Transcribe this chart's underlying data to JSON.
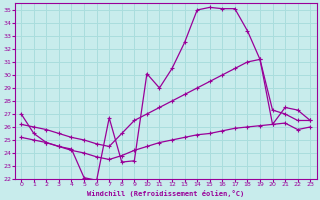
{
  "title": "",
  "xlabel": "Windchill (Refroidissement éolien,°C)",
  "ylabel": "",
  "background_color": "#c8ecec",
  "line_color": "#990099",
  "grid_color": "#aadddd",
  "xlim": [
    -0.5,
    23.5
  ],
  "ylim": [
    22,
    35.5
  ],
  "xticks": [
    0,
    1,
    2,
    3,
    4,
    5,
    6,
    7,
    8,
    9,
    10,
    11,
    12,
    13,
    14,
    15,
    16,
    17,
    18,
    19,
    20,
    21,
    22,
    23
  ],
  "yticks": [
    22,
    23,
    24,
    25,
    26,
    27,
    28,
    29,
    30,
    31,
    32,
    33,
    34,
    35
  ],
  "line1_x": [
    0,
    1,
    2,
    3,
    4,
    5,
    6,
    7,
    8,
    9,
    10,
    11,
    12,
    13,
    14,
    15,
    16,
    17,
    18,
    19,
    20,
    21,
    22,
    23
  ],
  "line1_y": [
    27.0,
    25.5,
    24.8,
    24.5,
    24.3,
    22.1,
    21.9,
    26.7,
    23.3,
    23.4,
    30.1,
    29.0,
    30.5,
    32.5,
    35.0,
    35.2,
    35.1,
    35.1,
    33.4,
    31.2,
    27.3,
    27.0,
    26.5,
    26.5
  ],
  "line2_x": [
    0,
    1,
    2,
    3,
    4,
    5,
    6,
    7,
    8,
    9,
    10,
    11,
    12,
    13,
    14,
    15,
    16,
    17,
    18,
    19,
    20,
    21,
    22,
    23
  ],
  "line2_y": [
    26.2,
    26.0,
    25.8,
    25.5,
    25.2,
    25.0,
    24.7,
    24.5,
    25.5,
    26.5,
    27.0,
    27.5,
    28.0,
    28.5,
    29.0,
    29.5,
    30.0,
    30.5,
    31.0,
    31.2,
    26.2,
    27.5,
    27.3,
    26.5
  ],
  "line3_x": [
    0,
    1,
    2,
    3,
    4,
    5,
    6,
    7,
    8,
    9,
    10,
    11,
    12,
    13,
    14,
    15,
    16,
    17,
    18,
    19,
    20,
    21,
    22,
    23
  ],
  "line3_y": [
    25.2,
    25.0,
    24.8,
    24.5,
    24.2,
    24.0,
    23.7,
    23.5,
    23.8,
    24.2,
    24.5,
    24.8,
    25.0,
    25.2,
    25.4,
    25.5,
    25.7,
    25.9,
    26.0,
    26.1,
    26.2,
    26.3,
    25.8,
    26.0
  ]
}
